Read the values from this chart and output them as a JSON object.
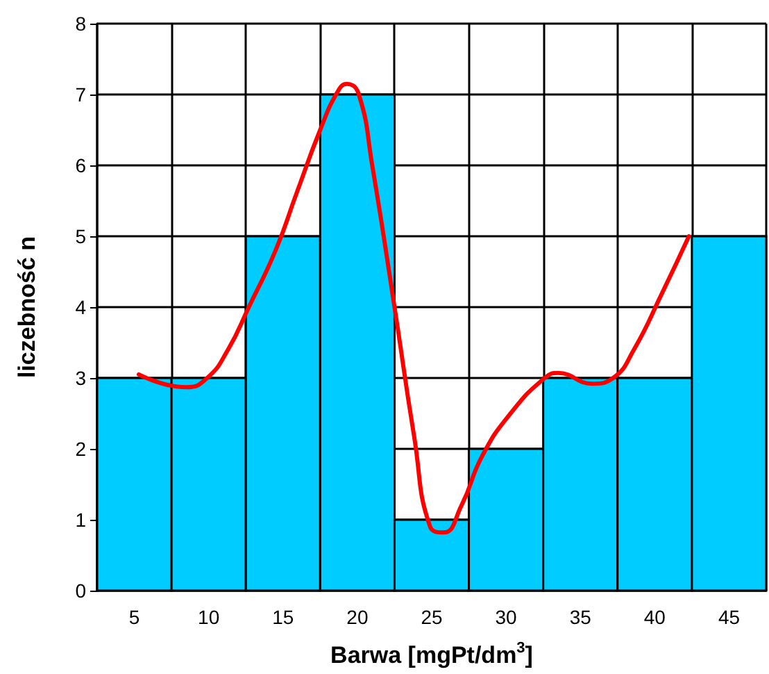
{
  "chart_data": {
    "type": "histogram",
    "xlabel": "Barwa [mgPt/dm$^{3}$]",
    "ylabel": "liczebność n",
    "bins": [
      2.5,
      7.5,
      12.5,
      17.5,
      22.5,
      27.5,
      32.5,
      37.5,
      42.5,
      47.5
    ],
    "values": [
      3,
      3,
      5,
      7,
      1,
      2,
      3,
      3,
      5
    ],
    "color": "#00ccff",
    "series": [
      {
        "type": "line",
        "color": "#ff0000",
        "x": [
          5.3,
          8.5,
          9.9,
          11.3,
          12.7,
          14.5,
          15.9,
          17.5,
          18.7,
          19.3,
          20.1,
          21.0,
          22.5,
          23.8,
          24.9,
          25.8,
          27.0,
          28.4,
          30.3,
          32.6,
          33.5,
          35.8,
          37.2,
          38.6,
          40.5,
          42.3
        ],
        "values": [
          3.05,
          2.87,
          3.0,
          3.4,
          4.0,
          4.8,
          5.6,
          6.5,
          7.05,
          7.15,
          7.0,
          6.0,
          4.0,
          2.2,
          0.9,
          0.82,
          1.2,
          1.9,
          2.5,
          3.0,
          3.07,
          2.92,
          3.0,
          3.4,
          4.2,
          5.0
        ]
      }
    ],
    "xlim": [
      2.5,
      47.5
    ],
    "xticks": [
      5,
      10,
      15,
      20,
      25,
      30,
      35,
      40,
      45
    ],
    "ylim": [
      0,
      8
    ],
    "yticks": [
      0,
      1,
      2,
      3,
      4,
      5,
      6,
      7,
      8
    ],
    "grid": true,
    "marker": "none"
  }
}
